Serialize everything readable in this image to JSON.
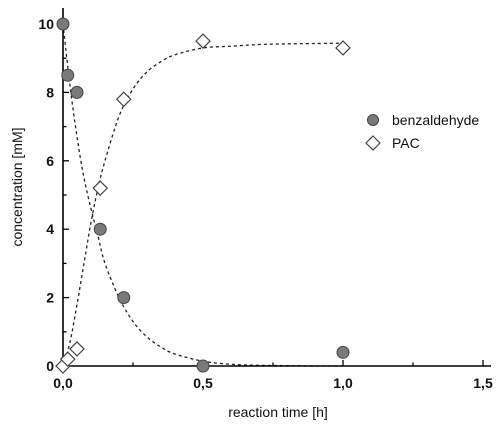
{
  "chart_data": {
    "type": "scatter",
    "xlabel": "reaction time [h]",
    "ylabel": "concentration [mM]",
    "xlim": [
      0,
      1.5
    ],
    "ylim": [
      0,
      10
    ],
    "x_ticks": [
      "0,0",
      "0,5",
      "1,0",
      "1,5"
    ],
    "x_tick_values": [
      0,
      0.5,
      1.0,
      1.5
    ],
    "y_ticks": [
      "0",
      "2",
      "4",
      "6",
      "8",
      "10"
    ],
    "y_tick_values": [
      0,
      2,
      4,
      6,
      8,
      10
    ],
    "legend_position": "right",
    "grid": false,
    "series": [
      {
        "name": "benzaldehyde",
        "marker": "filled-circle",
        "color": "#7a7a7a",
        "x": [
          0,
          0.017,
          0.05,
          0.133,
          0.217,
          0.5,
          1.0
        ],
        "y": [
          10.0,
          8.5,
          8.0,
          4.0,
          2.0,
          0.0,
          0.4
        ]
      },
      {
        "name": "PAC",
        "marker": "open-diamond",
        "color": "#ffffff",
        "x": [
          0,
          0.017,
          0.05,
          0.133,
          0.217,
          0.5,
          1.0
        ],
        "y": [
          0.0,
          0.2,
          0.5,
          5.2,
          7.8,
          9.5,
          9.3
        ]
      }
    ],
    "fit_curves": [
      {
        "series": "benzaldehyde",
        "style": "dashed",
        "x": [
          0,
          0.025,
          0.05,
          0.075,
          0.1,
          0.125,
          0.15,
          0.2,
          0.25,
          0.3,
          0.35,
          0.4,
          0.5,
          0.6,
          0.7,
          0.8,
          0.9,
          1.0
        ],
        "y": [
          10.0,
          8.2,
          6.7,
          5.5,
          4.6,
          3.8,
          3.0,
          2.0,
          1.3,
          0.85,
          0.55,
          0.35,
          0.14,
          0.05,
          0.02,
          0.01,
          0.0,
          0.0
        ]
      },
      {
        "series": "PAC",
        "style": "dashed",
        "x": [
          0,
          0.025,
          0.05,
          0.075,
          0.1,
          0.125,
          0.15,
          0.2,
          0.25,
          0.3,
          0.35,
          0.4,
          0.5,
          0.6,
          0.7,
          0.8,
          0.9,
          1.0
        ],
        "y": [
          0.0,
          0.7,
          1.8,
          3.0,
          4.2,
          5.2,
          6.0,
          7.3,
          8.1,
          8.6,
          8.9,
          9.1,
          9.3,
          9.35,
          9.4,
          9.42,
          9.43,
          9.44
        ]
      }
    ]
  }
}
